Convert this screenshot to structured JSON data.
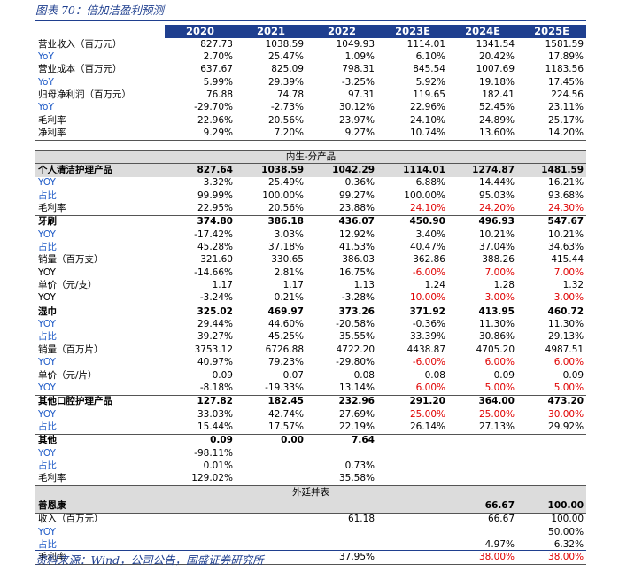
{
  "title": "图表 70：倍加洁盈利预测",
  "source": "资料来源：Wind，公司公告，国盛证券研究所",
  "header": [
    "",
    "2020",
    "2021",
    "2022",
    "2023E",
    "2024E",
    "2025E"
  ],
  "top_rows": [
    {
      "label": "营业收入（百万元）",
      "blue": false,
      "values": [
        "827.73",
        "1038.59",
        "1049.93",
        "1114.01",
        "1341.54",
        "1581.59"
      ]
    },
    {
      "label": "YoY",
      "blue": true,
      "values": [
        "2.70%",
        "25.47%",
        "1.09%",
        "6.10%",
        "20.42%",
        "17.89%"
      ]
    },
    {
      "label": "营业成本（百万元）",
      "blue": false,
      "values": [
        "637.67",
        "825.09",
        "798.31",
        "845.54",
        "1007.69",
        "1183.56"
      ]
    },
    {
      "label": "YoY",
      "blue": true,
      "values": [
        "5.99%",
        "29.39%",
        "-3.25%",
        "5.92%",
        "19.18%",
        "17.45%"
      ]
    },
    {
      "label": "归母净利润（百万元）",
      "blue": false,
      "values": [
        "76.88",
        "74.78",
        "97.31",
        "119.65",
        "182.41",
        "224.56"
      ]
    },
    {
      "label": "YoY",
      "blue": true,
      "values": [
        "-29.70%",
        "-2.73%",
        "30.12%",
        "22.96%",
        "52.45%",
        "23.11%"
      ]
    },
    {
      "label": "毛利率",
      "blue": false,
      "values": [
        "22.96%",
        "20.56%",
        "23.97%",
        "24.10%",
        "24.89%",
        "25.17%"
      ]
    },
    {
      "label": "净利率",
      "blue": false,
      "values": [
        "9.29%",
        "7.20%",
        "9.27%",
        "10.74%",
        "13.60%",
        "14.20%"
      ]
    }
  ],
  "section_internal": "内生-分产品",
  "section_external": "外延并表",
  "detail_rows": [
    {
      "label": "个人清洁护理产品",
      "blue": false,
      "bold": true,
      "shade": true,
      "values": [
        "827.64",
        "1038.59",
        "1042.29",
        "1114.01",
        "1274.87",
        "1481.59"
      ],
      "red": [
        false,
        false,
        false,
        false,
        false,
        false
      ]
    },
    {
      "label": "YOY",
      "blue": true,
      "values": [
        "3.32%",
        "25.49%",
        "0.36%",
        "6.88%",
        "14.44%",
        "16.21%"
      ],
      "red": [
        false,
        false,
        false,
        false,
        false,
        false
      ]
    },
    {
      "label": "占比",
      "blue": true,
      "values": [
        "99.99%",
        "100.00%",
        "99.27%",
        "100.00%",
        "95.03%",
        "93.68%"
      ],
      "red": [
        false,
        false,
        false,
        false,
        false,
        false
      ]
    },
    {
      "label": "毛利率",
      "blue": false,
      "values": [
        "22.95%",
        "20.56%",
        "23.88%",
        "24.10%",
        "24.20%",
        "24.30%"
      ],
      "red": [
        false,
        false,
        false,
        true,
        true,
        true
      ]
    },
    {
      "label": "牙刷",
      "blue": false,
      "bold": true,
      "values": [
        "374.80",
        "386.18",
        "436.07",
        "450.90",
        "496.93",
        "547.67"
      ],
      "red": [
        false,
        false,
        false,
        false,
        false,
        false
      ]
    },
    {
      "label": "YOY",
      "blue": true,
      "values": [
        "-17.42%",
        "3.03%",
        "12.92%",
        "3.40%",
        "10.21%",
        "10.21%"
      ],
      "red": [
        false,
        false,
        false,
        false,
        false,
        false
      ]
    },
    {
      "label": "占比",
      "blue": true,
      "values": [
        "45.28%",
        "37.18%",
        "41.53%",
        "40.47%",
        "37.04%",
        "34.63%"
      ],
      "red": [
        false,
        false,
        false,
        false,
        false,
        false
      ]
    },
    {
      "label": "销量（百万支）",
      "blue": false,
      "values": [
        "321.60",
        "330.65",
        "386.03",
        "362.86",
        "388.26",
        "415.44"
      ],
      "red": [
        false,
        false,
        false,
        false,
        false,
        false
      ]
    },
    {
      "label": "YOY",
      "blue": false,
      "values": [
        "-14.66%",
        "2.81%",
        "16.75%",
        "-6.00%",
        "7.00%",
        "7.00%"
      ],
      "red": [
        false,
        false,
        false,
        true,
        true,
        true
      ]
    },
    {
      "label": "单价（元/支）",
      "blue": false,
      "values": [
        "1.17",
        "1.17",
        "1.13",
        "1.24",
        "1.28",
        "1.32"
      ],
      "red": [
        false,
        false,
        false,
        false,
        false,
        false
      ]
    },
    {
      "label": "YOY",
      "blue": false,
      "values": [
        "-3.24%",
        "0.21%",
        "-3.28%",
        "10.00%",
        "3.00%",
        "3.00%"
      ],
      "red": [
        false,
        false,
        false,
        true,
        true,
        true
      ]
    },
    {
      "label": "湿巾",
      "blue": false,
      "bold": true,
      "values": [
        "325.02",
        "469.97",
        "373.26",
        "371.92",
        "413.95",
        "460.72"
      ],
      "red": [
        false,
        false,
        false,
        false,
        false,
        false
      ]
    },
    {
      "label": "YOY",
      "blue": true,
      "values": [
        "29.44%",
        "44.60%",
        "-20.58%",
        "-0.36%",
        "11.30%",
        "11.30%"
      ],
      "red": [
        false,
        false,
        false,
        false,
        false,
        false
      ]
    },
    {
      "label": "占比",
      "blue": true,
      "values": [
        "39.27%",
        "45.25%",
        "35.55%",
        "33.39%",
        "30.86%",
        "29.13%"
      ],
      "red": [
        false,
        false,
        false,
        false,
        false,
        false
      ]
    },
    {
      "label": "销量（百万片）",
      "blue": false,
      "values": [
        "3753.12",
        "6726.88",
        "4722.20",
        "4438.87",
        "4705.20",
        "4987.51"
      ],
      "red": [
        false,
        false,
        false,
        false,
        false,
        false
      ]
    },
    {
      "label": "YOY",
      "blue": true,
      "values": [
        "40.97%",
        "79.23%",
        "-29.80%",
        "-6.00%",
        "6.00%",
        "6.00%"
      ],
      "red": [
        false,
        false,
        false,
        true,
        true,
        true
      ]
    },
    {
      "label": "单价（元/片）",
      "blue": false,
      "values": [
        "0.09",
        "0.07",
        "0.08",
        "0.08",
        "0.09",
        "0.09"
      ],
      "red": [
        false,
        false,
        false,
        false,
        false,
        false
      ]
    },
    {
      "label": "YOY",
      "blue": true,
      "values": [
        "-8.18%",
        "-19.33%",
        "13.14%",
        "6.00%",
        "5.00%",
        "5.00%"
      ],
      "red": [
        false,
        false,
        false,
        true,
        true,
        true
      ]
    },
    {
      "label": "其他口腔护理产品",
      "blue": false,
      "bold": true,
      "values": [
        "127.82",
        "182.45",
        "232.96",
        "291.20",
        "364.00",
        "473.20"
      ],
      "red": [
        false,
        false,
        false,
        false,
        false,
        false
      ]
    },
    {
      "label": "YOY",
      "blue": true,
      "values": [
        "33.03%",
        "42.74%",
        "27.69%",
        "25.00%",
        "25.00%",
        "30.00%"
      ],
      "red": [
        false,
        false,
        false,
        true,
        true,
        true
      ]
    },
    {
      "label": "占比",
      "blue": true,
      "values": [
        "15.44%",
        "17.57%",
        "22.19%",
        "26.14%",
        "27.13%",
        "29.92%"
      ],
      "red": [
        false,
        false,
        false,
        false,
        false,
        false
      ]
    },
    {
      "label": "其他",
      "blue": false,
      "bold": true,
      "values": [
        "0.09",
        "0.00",
        "7.64",
        "",
        "",
        ""
      ],
      "red": [
        false,
        false,
        false,
        false,
        false,
        false
      ]
    },
    {
      "label": "YOY",
      "blue": true,
      "values": [
        "-98.11%",
        "",
        "",
        "",
        "",
        ""
      ],
      "red": [
        false,
        false,
        false,
        false,
        false,
        false
      ]
    },
    {
      "label": "占比",
      "blue": true,
      "values": [
        "0.01%",
        "",
        "0.73%",
        "",
        "",
        ""
      ],
      "red": [
        false,
        false,
        false,
        false,
        false,
        false
      ]
    },
    {
      "label": "毛利率",
      "blue": false,
      "values": [
        "129.02%",
        "",
        "35.58%",
        "",
        "",
        ""
      ],
      "red": [
        false,
        false,
        false,
        false,
        false,
        false
      ]
    }
  ],
  "external_rows": [
    {
      "label": "善恩康",
      "blue": false,
      "bold": true,
      "shade": true,
      "values": [
        "",
        "",
        "",
        "",
        "66.67",
        "100.00"
      ],
      "red": [
        false,
        false,
        false,
        false,
        false,
        false
      ]
    },
    {
      "label": "收入（百万元）",
      "blue": false,
      "values": [
        "",
        "",
        "61.18",
        "",
        "66.67",
        "100.00"
      ],
      "red": [
        false,
        false,
        false,
        false,
        false,
        false
      ]
    },
    {
      "label": "YOY",
      "blue": true,
      "values": [
        "",
        "",
        "",
        "",
        "",
        "50.00%"
      ],
      "red": [
        false,
        false,
        false,
        false,
        false,
        false
      ]
    },
    {
      "label": "占比",
      "blue": true,
      "values": [
        "",
        "",
        "",
        "",
        "4.97%",
        "6.32%"
      ],
      "red": [
        false,
        false,
        false,
        false,
        false,
        false
      ]
    },
    {
      "label": "毛利率",
      "blue": false,
      "values": [
        "",
        "",
        "37.95%",
        "",
        "38.00%",
        "38.00%"
      ],
      "red": [
        false,
        false,
        false,
        false,
        true,
        true
      ]
    }
  ]
}
